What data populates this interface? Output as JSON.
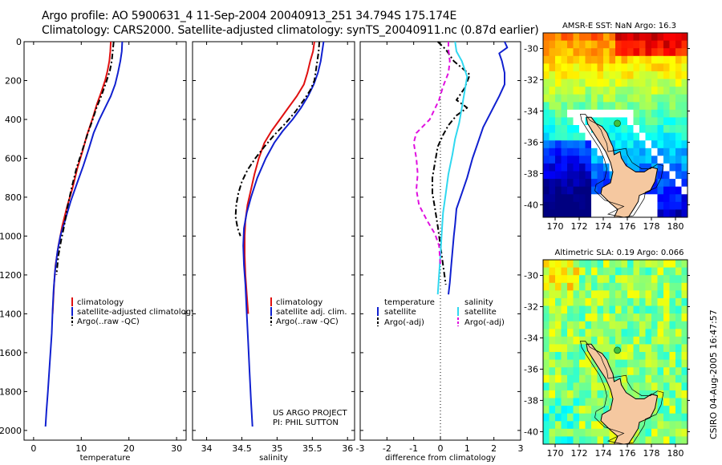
{
  "header": {
    "line1": "Argo profile: AO 5900631_4 11-Sep-2004 20040913_251 34.794S 175.174E",
    "line2": "Climatology: CARS2000. Satellite-adjusted climatology: synTS_20040911.nc (0.87d earlier)"
  },
  "credit": "CSIRO 04-Aug-2005 16:47:57",
  "colors": {
    "climatology": "#e01010",
    "satellite": "#1020d0",
    "argo": "#000000",
    "satellite_salinity": "#30d8f0",
    "argo_salinity": "#e010e0",
    "land": "#f5c8a0"
  },
  "chart_data": [
    {
      "type": "line",
      "id": "temperature",
      "xlabel": "temperature",
      "xlim": [
        -2,
        32
      ],
      "ylim": [
        2050,
        0
      ],
      "xticks": [
        0,
        10,
        20,
        30
      ],
      "yticks": [
        0,
        200,
        400,
        600,
        800,
        1000,
        1200,
        1400,
        1600,
        1800,
        2000
      ],
      "series": [
        {
          "name": "climatology",
          "color": "red",
          "style": "solid",
          "points": [
            [
              16.2,
              0
            ],
            [
              16.1,
              50
            ],
            [
              15.9,
              100
            ],
            [
              15.5,
              150
            ],
            [
              15.0,
              200
            ],
            [
              14.2,
              260
            ],
            [
              13.3,
              320
            ],
            [
              12.3,
              400
            ],
            [
              11.2,
              480
            ],
            [
              10.3,
              560
            ],
            [
              9.2,
              650
            ],
            [
              8.2,
              750
            ],
            [
              7.0,
              850
            ],
            [
              6.0,
              950
            ],
            [
              5.2,
              1050
            ],
            [
              4.6,
              1150
            ],
            [
              4.3,
              1250
            ],
            [
              4.1,
              1350
            ],
            [
              4.0,
              1400
            ]
          ]
        },
        {
          "name": "satellite-adjusted climatology",
          "color": "blue",
          "style": "solid",
          "points": [
            [
              18.6,
              0
            ],
            [
              18.5,
              50
            ],
            [
              18.2,
              100
            ],
            [
              17.7,
              160
            ],
            [
              17.1,
              220
            ],
            [
              16.2,
              280
            ],
            [
              15.0,
              340
            ],
            [
              13.8,
              400
            ],
            [
              12.6,
              470
            ],
            [
              11.6,
              550
            ],
            [
              10.4,
              640
            ],
            [
              9.1,
              730
            ],
            [
              7.8,
              820
            ],
            [
              6.6,
              920
            ],
            [
              5.6,
              1000
            ],
            [
              5.0,
              1080
            ],
            [
              4.5,
              1180
            ],
            [
              4.2,
              1280
            ],
            [
              4.0,
              1380
            ],
            [
              3.8,
              1500
            ],
            [
              3.4,
              1650
            ],
            [
              3.0,
              1800
            ],
            [
              2.7,
              1900
            ],
            [
              2.5,
              1980
            ]
          ]
        },
        {
          "name": "Argo(..raw -QC)",
          "color": "black",
          "style": "dash-dot",
          "points": [
            [
              16.8,
              0
            ],
            [
              16.6,
              50
            ],
            [
              16.4,
              100
            ],
            [
              16.0,
              150
            ],
            [
              15.2,
              210
            ],
            [
              14.2,
              280
            ],
            [
              13.2,
              340
            ],
            [
              12.4,
              400
            ],
            [
              11.4,
              470
            ],
            [
              10.2,
              560
            ],
            [
              9.0,
              650
            ],
            [
              8.0,
              750
            ],
            [
              7.1,
              850
            ],
            [
              6.4,
              950
            ],
            [
              5.8,
              1020
            ],
            [
              5.2,
              1100
            ],
            [
              4.8,
              1200
            ]
          ]
        }
      ],
      "legend": {
        "position": "bottom-right",
        "entries": [
          "climatology",
          "satellite-adjusted climatology",
          "Argo(..raw -QC)"
        ]
      }
    },
    {
      "type": "line",
      "id": "salinity",
      "xlabel": "salinity",
      "xlim": [
        33.8,
        36.1
      ],
      "ylim": [
        2050,
        0
      ],
      "xticks": [
        34,
        34.5,
        35,
        35.5,
        36
      ],
      "series": [
        {
          "name": "climatology",
          "color": "red",
          "style": "solid",
          "points": [
            [
              35.53,
              0
            ],
            [
              35.51,
              50
            ],
            [
              35.47,
              100
            ],
            [
              35.43,
              160
            ],
            [
              35.38,
              220
            ],
            [
              35.28,
              280
            ],
            [
              35.16,
              340
            ],
            [
              35.04,
              400
            ],
            [
              34.92,
              460
            ],
            [
              34.82,
              520
            ],
            [
              34.74,
              600
            ],
            [
              34.68,
              680
            ],
            [
              34.63,
              760
            ],
            [
              34.58,
              840
            ],
            [
              34.55,
              920
            ],
            [
              34.54,
              1000
            ],
            [
              34.54,
              1100
            ],
            [
              34.55,
              1200
            ],
            [
              34.57,
              1300
            ],
            [
              34.59,
              1400
            ]
          ]
        },
        {
          "name": "satellite adj. clim.",
          "color": "blue",
          "style": "solid",
          "points": [
            [
              35.66,
              0
            ],
            [
              35.64,
              50
            ],
            [
              35.62,
              100
            ],
            [
              35.58,
              160
            ],
            [
              35.52,
              220
            ],
            [
              35.44,
              280
            ],
            [
              35.34,
              340
            ],
            [
              35.22,
              400
            ],
            [
              35.08,
              460
            ],
            [
              34.96,
              520
            ],
            [
              34.84,
              600
            ],
            [
              34.72,
              700
            ],
            [
              34.63,
              800
            ],
            [
              34.57,
              880
            ],
            [
              34.53,
              960
            ],
            [
              34.52,
              1050
            ],
            [
              34.53,
              1150
            ],
            [
              34.55,
              1250
            ],
            [
              34.57,
              1400
            ],
            [
              34.59,
              1550
            ],
            [
              34.61,
              1700
            ],
            [
              34.63,
              1850
            ],
            [
              34.65,
              1980
            ]
          ]
        },
        {
          "name": "Argo(..raw -QC)",
          "color": "black",
          "style": "dash-dot",
          "points": [
            [
              35.6,
              0
            ],
            [
              35.59,
              50
            ],
            [
              35.57,
              100
            ],
            [
              35.55,
              150
            ],
            [
              35.53,
              200
            ],
            [
              35.47,
              250
            ],
            [
              35.38,
              300
            ],
            [
              35.26,
              360
            ],
            [
              35.12,
              420
            ],
            [
              34.96,
              480
            ],
            [
              34.82,
              540
            ],
            [
              34.69,
              600
            ],
            [
              34.58,
              660
            ],
            [
              34.5,
              720
            ],
            [
              34.45,
              780
            ],
            [
              34.42,
              840
            ],
            [
              34.41,
              900
            ],
            [
              34.44,
              960
            ],
            [
              34.48,
              1000
            ]
          ]
        }
      ],
      "legend": {
        "position": "bottom-right",
        "entries": [
          "climatology",
          "satellite adj. clim.",
          "Argo(..raw -QC)"
        ]
      },
      "annotations": [
        "US ARGO PROJECT",
        "PI: PHIL SUTTON"
      ]
    },
    {
      "type": "line",
      "id": "difference",
      "xlabel": "difference from climatology",
      "xlim": [
        -3,
        3
      ],
      "ylim": [
        2050,
        0
      ],
      "xticks": [
        -3,
        -2,
        -1,
        0,
        1,
        2,
        3
      ],
      "zero_line": "dotted",
      "series": [
        {
          "name": "temperature satellite",
          "color": "blue",
          "style": "solid",
          "points": [
            [
              2.4,
              0
            ],
            [
              2.5,
              30
            ],
            [
              2.2,
              60
            ],
            [
              2.3,
              100
            ],
            [
              2.4,
              160
            ],
            [
              2.4,
              220
            ],
            [
              2.2,
              280
            ],
            [
              1.9,
              360
            ],
            [
              1.6,
              440
            ],
            [
              1.4,
              520
            ],
            [
              1.2,
              600
            ],
            [
              1.0,
              700
            ],
            [
              0.8,
              780
            ],
            [
              0.6,
              860
            ],
            [
              0.55,
              940
            ],
            [
              0.5,
              1000
            ],
            [
              0.45,
              1080
            ],
            [
              0.4,
              1160
            ],
            [
              0.35,
              1240
            ],
            [
              0.3,
              1300
            ]
          ]
        },
        {
          "name": "temperature Argo(-adj)",
          "color": "black",
          "style": "dash-dot",
          "points": [
            [
              -0.1,
              0
            ],
            [
              0.2,
              40
            ],
            [
              0.5,
              100
            ],
            [
              1.1,
              170
            ],
            [
              0.9,
              240
            ],
            [
              0.6,
              300
            ],
            [
              1.0,
              340
            ],
            [
              0.6,
              380
            ],
            [
              0.3,
              430
            ],
            [
              0.1,
              480
            ],
            [
              -0.1,
              540
            ],
            [
              -0.2,
              620
            ],
            [
              -0.3,
              700
            ],
            [
              -0.3,
              780
            ],
            [
              -0.2,
              860
            ],
            [
              -0.1,
              950
            ],
            [
              0.0,
              1050
            ],
            [
              0.1,
              1150
            ],
            [
              0.2,
              1250
            ]
          ]
        },
        {
          "name": "salinity satellite",
          "color": "cyan",
          "style": "solid",
          "points": [
            [
              0.55,
              0
            ],
            [
              0.6,
              50
            ],
            [
              0.8,
              100
            ],
            [
              1.0,
              180
            ],
            [
              0.9,
              260
            ],
            [
              0.8,
              340
            ],
            [
              0.7,
              420
            ],
            [
              0.55,
              500
            ],
            [
              0.45,
              580
            ],
            [
              0.3,
              680
            ],
            [
              0.2,
              780
            ],
            [
              0.1,
              880
            ],
            [
              0.05,
              980
            ],
            [
              0.0,
              1100
            ],
            [
              -0.05,
              1200
            ],
            [
              -0.1,
              1300
            ]
          ]
        },
        {
          "name": "salinity Argo(-adj)",
          "color": "magenta",
          "style": "dashed",
          "points": [
            [
              0.3,
              0
            ],
            [
              0.3,
              40
            ],
            [
              0.35,
              100
            ],
            [
              0.3,
              160
            ],
            [
              0.1,
              230
            ],
            [
              -0.05,
              300
            ],
            [
              -0.4,
              400
            ],
            [
              -0.9,
              470
            ],
            [
              -1.0,
              520
            ],
            [
              -0.9,
              600
            ],
            [
              -0.85,
              680
            ],
            [
              -0.9,
              760
            ],
            [
              -0.8,
              840
            ],
            [
              -0.5,
              920
            ],
            [
              -0.2,
              990
            ],
            [
              -0.05,
              1050
            ],
            [
              0.0,
              1150
            ]
          ]
        }
      ],
      "legend": {
        "position": "bottom",
        "left_title": "temperature",
        "right_title": "salinity",
        "entries": [
          "satellite",
          "Argo(-adj)",
          "satellite",
          "Argo(-adj)"
        ]
      }
    },
    {
      "type": "heatmap",
      "id": "sst-map",
      "title": "AMSR-E SST: NaN Argo: 16.3",
      "xlim": [
        169,
        181
      ],
      "ylim": [
        -40.8,
        -29
      ],
      "xticks": [
        170,
        172,
        174,
        176,
        178,
        180
      ],
      "yticks": [
        -30,
        -32,
        -34,
        -36,
        -38,
        -40
      ],
      "profile_location": [
        175.17,
        -34.79
      ]
    },
    {
      "type": "heatmap",
      "id": "sla-map",
      "title": "Altimetric SLA: 0.19 Argo: 0.066",
      "xlim": [
        169,
        181
      ],
      "ylim": [
        -40.8,
        -29
      ],
      "xticks": [
        170,
        172,
        174,
        176,
        178,
        180
      ],
      "yticks": [
        -30,
        -32,
        -34,
        -36,
        -38,
        -40
      ],
      "profile_location": [
        175.17,
        -34.79
      ]
    }
  ]
}
